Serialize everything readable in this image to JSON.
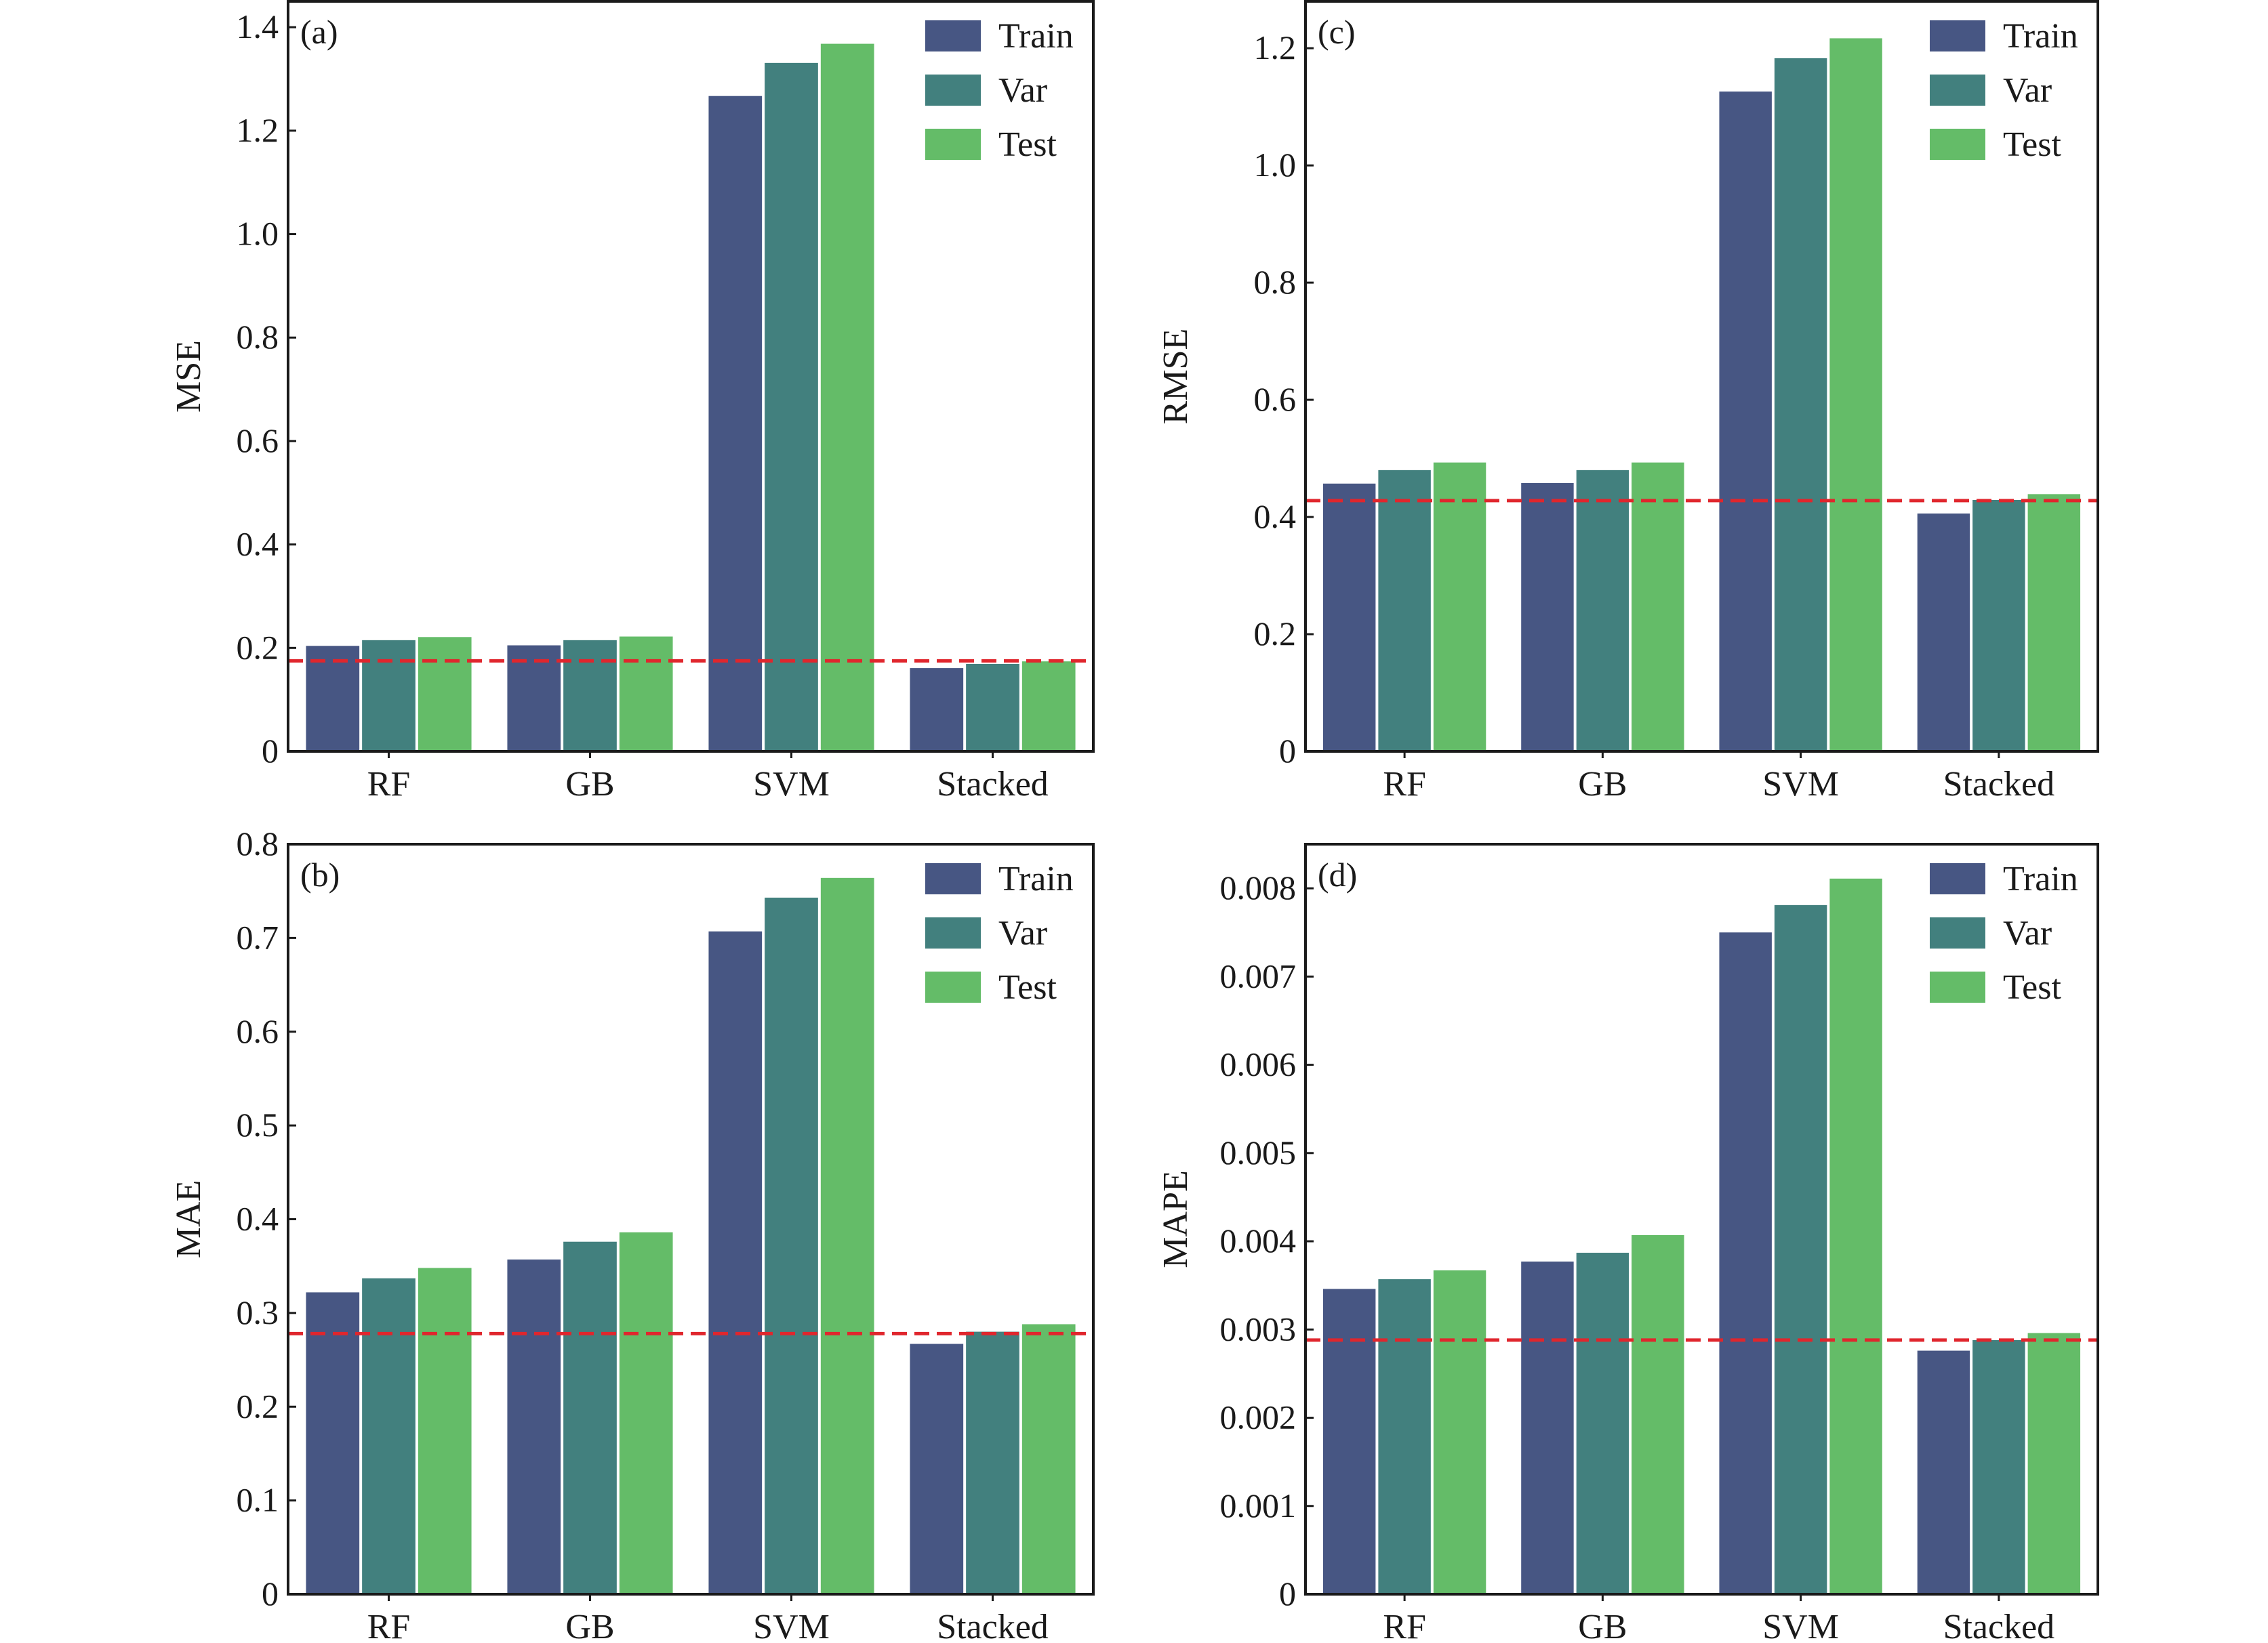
{
  "colors": {
    "Train": "#475683",
    "Var": "#42807e",
    "Test": "#64bc68",
    "reference_line": "#e0262d"
  },
  "chart_data": [
    {
      "type": "bar",
      "panel_label": "(a)",
      "ylabel": "MSE",
      "categories": [
        "RF",
        "GB",
        "SVM",
        "Stacked"
      ],
      "ylim": [
        0,
        1.45
      ],
      "yticks": [
        0,
        0.2,
        0.4,
        0.6,
        0.8,
        1.0,
        1.2,
        1.4
      ],
      "ytick_labels": [
        "0",
        "0.2",
        "0.4",
        "0.6",
        "0.8",
        "1.0",
        "1.2",
        "1.4"
      ],
      "legend": "top-right",
      "grid": false,
      "reference_line": {
        "y": 0.175,
        "style": "dashed"
      },
      "series": [
        {
          "name": "Train",
          "values": [
            0.204,
            0.205,
            1.267,
            0.161
          ]
        },
        {
          "name": "Var",
          "values": [
            0.215,
            0.215,
            1.331,
            0.169
          ]
        },
        {
          "name": "Test",
          "values": [
            0.221,
            0.222,
            1.368,
            0.174
          ]
        }
      ]
    },
    {
      "type": "bar",
      "panel_label": "(c)",
      "ylabel": "RMSE",
      "categories": [
        "RF",
        "GB",
        "SVM",
        "Stacked"
      ],
      "ylim": [
        0,
        1.28
      ],
      "yticks": [
        0,
        0.2,
        0.4,
        0.6,
        0.8,
        1.0,
        1.2
      ],
      "ytick_labels": [
        "0",
        "0.2",
        "0.4",
        "0.6",
        "0.8",
        "1.0",
        "1.2"
      ],
      "legend": "top-right",
      "grid": false,
      "reference_line": {
        "y": 0.428,
        "style": "dashed"
      },
      "series": [
        {
          "name": "Train",
          "values": [
            0.457,
            0.458,
            1.126,
            0.406
          ]
        },
        {
          "name": "Var",
          "values": [
            0.48,
            0.48,
            1.183,
            0.429
          ]
        },
        {
          "name": "Test",
          "values": [
            0.493,
            0.493,
            1.217,
            0.439
          ]
        }
      ]
    },
    {
      "type": "bar",
      "panel_label": "(b)",
      "ylabel": "MAE",
      "categories": [
        "RF",
        "GB",
        "SVM",
        "Stacked"
      ],
      "ylim": [
        0,
        0.8
      ],
      "yticks": [
        0,
        0.1,
        0.2,
        0.3,
        0.4,
        0.5,
        0.6,
        0.7,
        0.8
      ],
      "ytick_labels": [
        "0",
        "0.1",
        "0.2",
        "0.3",
        "0.4",
        "0.5",
        "0.6",
        "0.7",
        "0.8"
      ],
      "legend": "top-right",
      "grid": false,
      "reference_line": {
        "y": 0.278,
        "style": "dashed"
      },
      "series": [
        {
          "name": "Train",
          "values": [
            0.322,
            0.357,
            0.707,
            0.267
          ]
        },
        {
          "name": "Var",
          "values": [
            0.337,
            0.376,
            0.743,
            0.28
          ]
        },
        {
          "name": "Test",
          "values": [
            0.348,
            0.386,
            0.764,
            0.288
          ]
        }
      ]
    },
    {
      "type": "bar",
      "panel_label": "(d)",
      "ylabel": "MAPE",
      "categories": [
        "RF",
        "GB",
        "SVM",
        "Stacked"
      ],
      "ylim": [
        0,
        0.0085
      ],
      "yticks": [
        0,
        0.001,
        0.002,
        0.003,
        0.004,
        0.005,
        0.006,
        0.007,
        0.008
      ],
      "ytick_labels": [
        "0",
        "0.001",
        "0.002",
        "0.003",
        "0.004",
        "0.005",
        "0.006",
        "0.007",
        "0.008"
      ],
      "legend": "top-right",
      "grid": false,
      "reference_line": {
        "y": 0.00288,
        "style": "dashed"
      },
      "series": [
        {
          "name": "Train",
          "values": [
            0.00346,
            0.00377,
            0.0075,
            0.00276
          ]
        },
        {
          "name": "Var",
          "values": [
            0.00357,
            0.00387,
            0.00781,
            0.00288
          ]
        },
        {
          "name": "Test",
          "values": [
            0.00367,
            0.00407,
            0.00811,
            0.00296
          ]
        }
      ]
    }
  ]
}
